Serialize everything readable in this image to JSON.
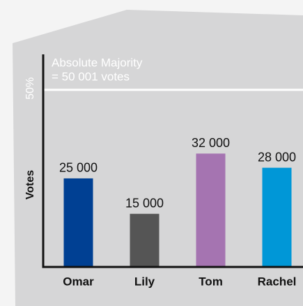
{
  "chart_data": {
    "type": "bar",
    "y_label": "Votes",
    "categories": [
      "Omar",
      "Lily",
      "Tom",
      "Rachel"
    ],
    "values": [
      25000,
      15000,
      32000,
      28000
    ],
    "value_labels": [
      "25 000",
      "15 000",
      "32 000",
      "28 000"
    ],
    "colors": [
      "#004093",
      "#555555",
      "#a574b1",
      "#0097d7"
    ],
    "ylim": [
      0,
      60000
    ],
    "reference_line": {
      "value": 50001,
      "label": "50%",
      "annotation": [
        "Absolute Majority",
        "= 50 001 votes"
      ]
    }
  }
}
